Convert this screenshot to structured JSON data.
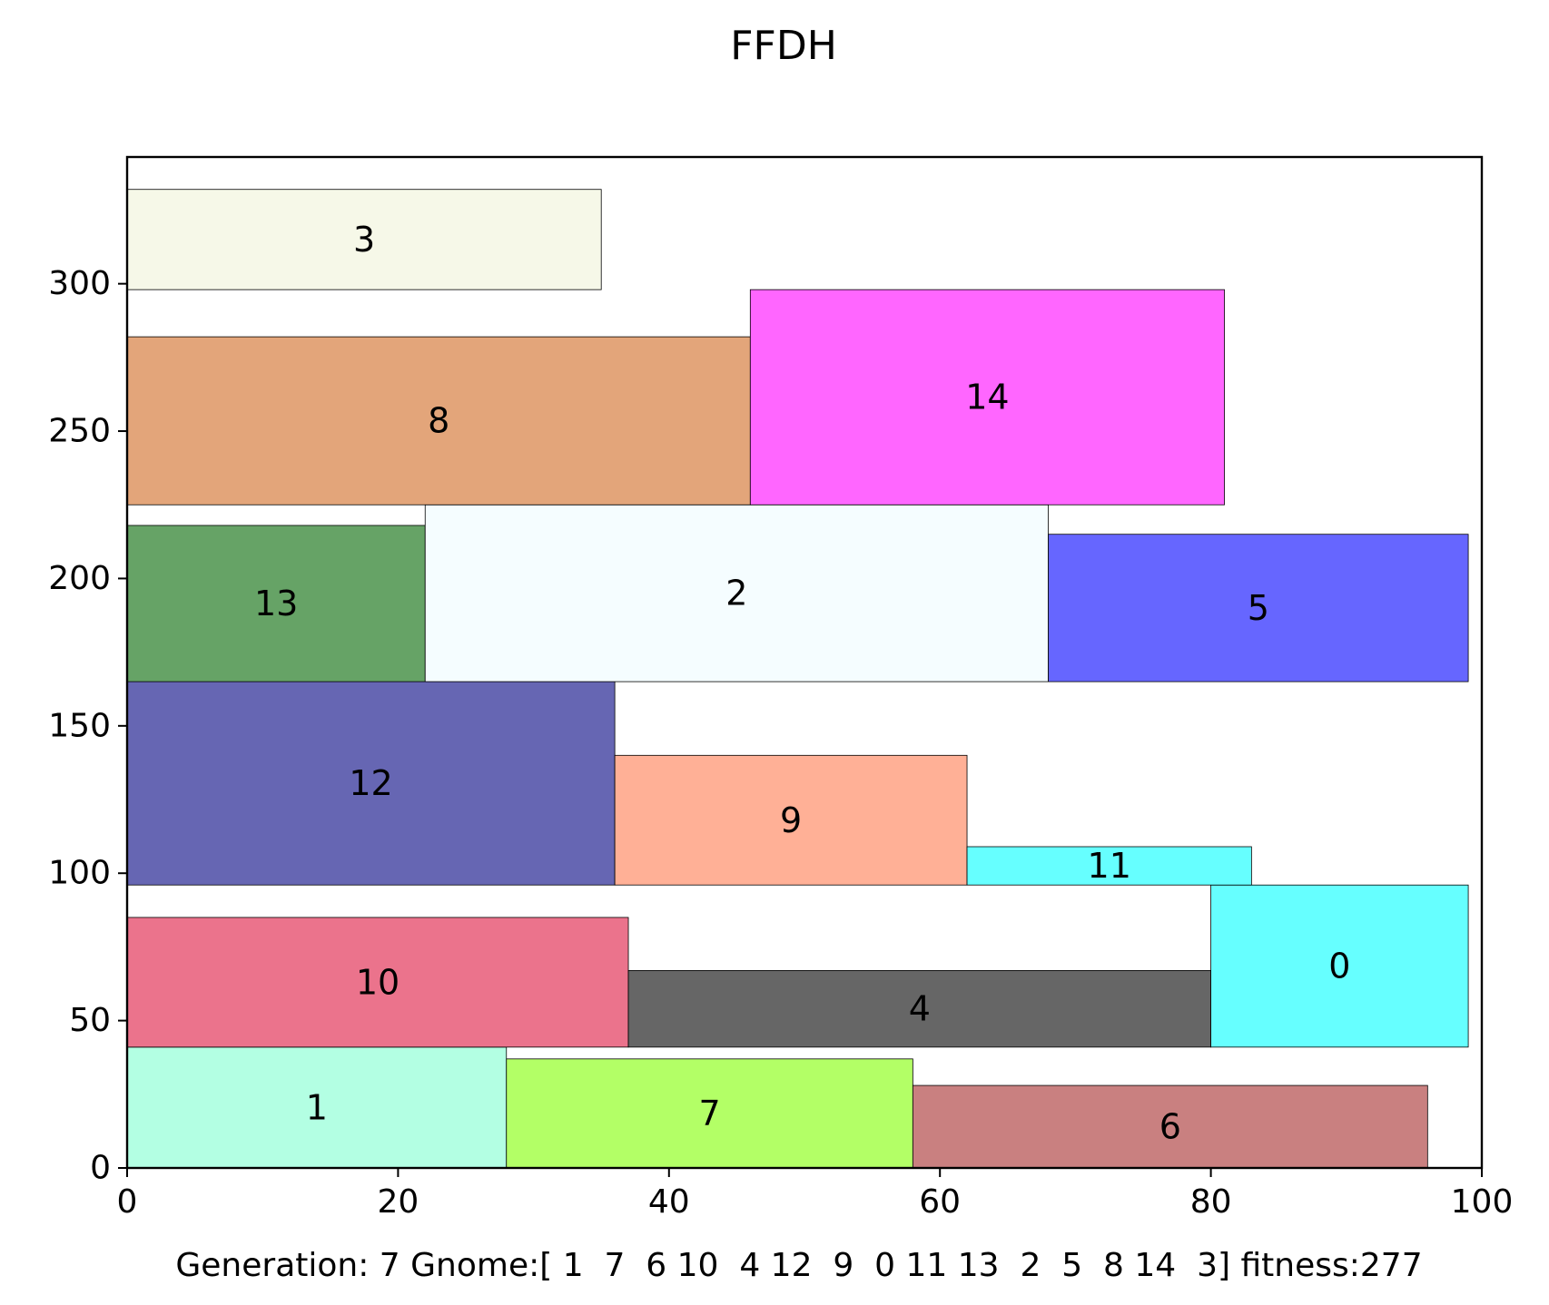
{
  "chart_data": {
    "type": "rectangle-packing",
    "title": "FFDH",
    "xlabel": "Generation: 7 Gnome:[ 1  7  6 10  4 12  9  0 11 13  2  5  8 14  3] fitness:277",
    "ylabel": "",
    "xlim": [
      0,
      100
    ],
    "ylim": [
      0,
      343
    ],
    "x_ticks": [
      0,
      20,
      40,
      60,
      80,
      100
    ],
    "y_ticks": [
      0,
      50,
      100,
      150,
      200,
      250,
      300
    ],
    "grid": false,
    "rectangles": [
      {
        "id": "1",
        "x": 0,
        "y": 0,
        "width": 28,
        "height": 41,
        "color": "#b3ffe3"
      },
      {
        "id": "7",
        "x": 28,
        "y": 0,
        "width": 30,
        "height": 37,
        "color": "#b3ff66"
      },
      {
        "id": "6",
        "x": 58,
        "y": 0,
        "width": 38,
        "height": 28,
        "color": "#c98080"
      },
      {
        "id": "10",
        "x": 0,
        "y": 41,
        "width": 37,
        "height": 44,
        "color": "#eb738c"
      },
      {
        "id": "4",
        "x": 37,
        "y": 41,
        "width": 43,
        "height": 26,
        "color": "#666666"
      },
      {
        "id": "0",
        "x": 80,
        "y": 41,
        "width": 19,
        "height": 55,
        "color": "#66ffff"
      },
      {
        "id": "12",
        "x": 0,
        "y": 96,
        "width": 36,
        "height": 69,
        "color": "#6666b3"
      },
      {
        "id": "9",
        "x": 36,
        "y": 96,
        "width": 26,
        "height": 44,
        "color": "#ffb096"
      },
      {
        "id": "11",
        "x": 62,
        "y": 96,
        "width": 21,
        "height": 13,
        "color": "#66ffff"
      },
      {
        "id": "13",
        "x": 0,
        "y": 165,
        "width": 22,
        "height": 53,
        "color": "#66a366"
      },
      {
        "id": "2",
        "x": 22,
        "y": 165,
        "width": 46,
        "height": 60,
        "color": "#f5fdff"
      },
      {
        "id": "5",
        "x": 68,
        "y": 165,
        "width": 31,
        "height": 50,
        "color": "#6666ff"
      },
      {
        "id": "8",
        "x": 0,
        "y": 225,
        "width": 46,
        "height": 57,
        "color": "#e3a57a"
      },
      {
        "id": "14",
        "x": 46,
        "y": 225,
        "width": 35,
        "height": 73,
        "color": "#ff66ff"
      },
      {
        "id": "3",
        "x": 0,
        "y": 298,
        "width": 35,
        "height": 34,
        "color": "#f6f8e8"
      }
    ]
  }
}
